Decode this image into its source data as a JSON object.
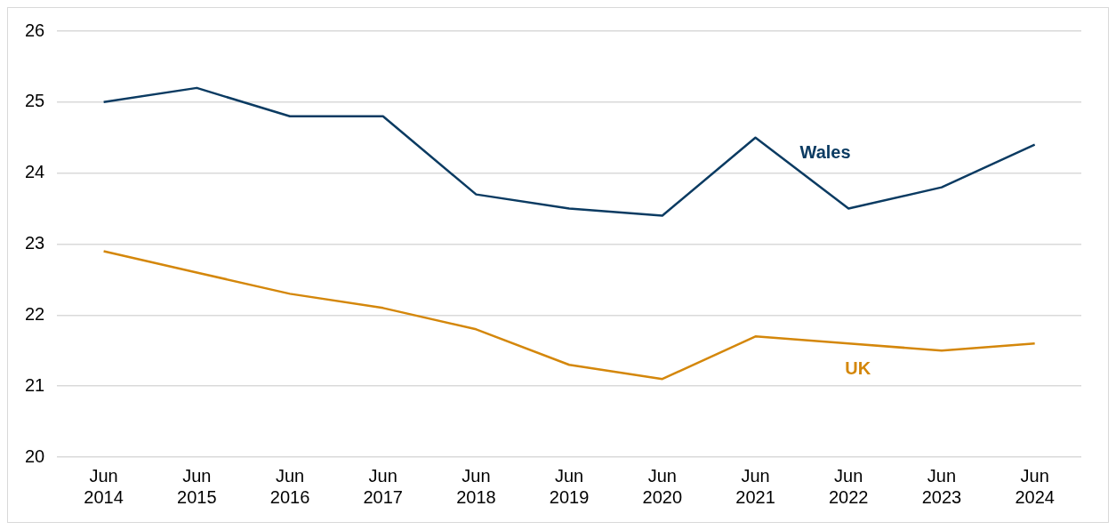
{
  "chart_data": {
    "type": "line",
    "categories": [
      "Jun 2014",
      "Jun 2015",
      "Jun 2016",
      "Jun 2017",
      "Jun 2018",
      "Jun 2019",
      "Jun 2020",
      "Jun 2021",
      "Jun 2022",
      "Jun 2023",
      "Jun 2024"
    ],
    "series": [
      {
        "name": "Wales",
        "color": "#0b3b62",
        "values": [
          25.0,
          25.2,
          24.8,
          24.8,
          23.7,
          23.5,
          23.4,
          24.5,
          23.5,
          23.8,
          24.4
        ]
      },
      {
        "name": "UK",
        "color": "#d4870b",
        "values": [
          22.9,
          22.6,
          22.3,
          22.1,
          21.8,
          21.3,
          21.1,
          21.7,
          21.6,
          21.5,
          21.6
        ]
      }
    ],
    "ylim": [
      20,
      26
    ],
    "yticks": [
      20,
      21,
      22,
      23,
      24,
      25,
      26
    ],
    "grid": "y",
    "legend": false,
    "marker": "none",
    "line_style": "solid"
  }
}
